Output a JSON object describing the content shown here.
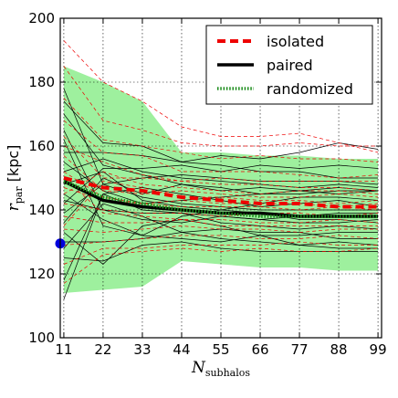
{
  "chart_data": {
    "type": "line",
    "xlabel": "N",
    "xlabel_sub": "subhalos",
    "ylabel": "r",
    "ylabel_sub": "par",
    "ylabel_unit": "[kpc]",
    "xlim": [
      10,
      100
    ],
    "ylim": [
      100,
      200
    ],
    "x_ticks": [
      11,
      22,
      33,
      44,
      55,
      66,
      77,
      88,
      99
    ],
    "y_ticks": [
      100,
      120,
      140,
      160,
      180,
      200
    ],
    "x": [
      11,
      22,
      33,
      44,
      55,
      66,
      77,
      88,
      99
    ],
    "grid": true,
    "legend_position": "top-right",
    "band": {
      "upper": [
        185,
        180,
        174,
        158,
        158,
        157,
        157,
        156,
        156
      ],
      "lower": [
        114,
        115,
        116,
        124,
        123,
        122,
        122,
        121,
        121
      ],
      "color": "#9ef09e"
    },
    "series": [
      {
        "name": "isolated",
        "style": "dashed",
        "color": "#ee0000",
        "values": [
          150,
          147,
          146,
          144,
          143,
          142,
          142,
          141,
          141
        ]
      },
      {
        "name": "paired",
        "style": "solid",
        "color": "#000000",
        "values": [
          149,
          143,
          141,
          140,
          139,
          139,
          138,
          138,
          138
        ]
      },
      {
        "name": "randomized",
        "style": "dotted",
        "color": "#1a8c1a",
        "values": [
          149,
          144,
          142,
          140,
          139,
          138,
          138,
          138,
          138
        ]
      }
    ],
    "thin_lines_black": [
      [
        112,
        145,
        140,
        139,
        136,
        135,
        134,
        135,
        134
      ],
      [
        118,
        145,
        147,
        145,
        143,
        141,
        142,
        143,
        141
      ],
      [
        125,
        124,
        129,
        130,
        128,
        127,
        127,
        127,
        127
      ],
      [
        128,
        142,
        138,
        133,
        134,
        133,
        133,
        131,
        131
      ],
      [
        133,
        123,
        135,
        137,
        135,
        132,
        129,
        128,
        128
      ],
      [
        136,
        150,
        145,
        148,
        146,
        147,
        146,
        147,
        146
      ],
      [
        139,
        148,
        150,
        151,
        150,
        149,
        149,
        149,
        148
      ],
      [
        142,
        153,
        153,
        154,
        152,
        154,
        153,
        154,
        153
      ],
      [
        145,
        137,
        132,
        138,
        140,
        139,
        137,
        137,
        136
      ],
      [
        148,
        152,
        143,
        141,
        140,
        142,
        144,
        144,
        143
      ],
      [
        152,
        156,
        152,
        150,
        149,
        148,
        147,
        148,
        147
      ],
      [
        155,
        146,
        142,
        143,
        144,
        145,
        146,
        145,
        146
      ],
      [
        158,
        158,
        157,
        155,
        154,
        152,
        152,
        150,
        150
      ],
      [
        162,
        135,
        132,
        131,
        130,
        132,
        132,
        133,
        133
      ],
      [
        165,
        140,
        137,
        136,
        138,
        137,
        136,
        136,
        137
      ],
      [
        170,
        154,
        151,
        148,
        147,
        145,
        145,
        146,
        146
      ],
      [
        174,
        161,
        160,
        155,
        157,
        156,
        158,
        161,
        159
      ],
      [
        178,
        148,
        144,
        142,
        141,
        140,
        140,
        140,
        140
      ],
      [
        130,
        130,
        131,
        133,
        131,
        130,
        129,
        130,
        129
      ],
      [
        143,
        140,
        139,
        139,
        138,
        137,
        138,
        139,
        139
      ]
    ],
    "thin_lines_red": [
      [
        193,
        180,
        174,
        166,
        163,
        163,
        164,
        161,
        158
      ],
      [
        185,
        168,
        165,
        161,
        160,
        160,
        161,
        160,
        160
      ],
      [
        175,
        162,
        160,
        158,
        156,
        157,
        156,
        156,
        155
      ],
      [
        168,
        158,
        157,
        152,
        152,
        152,
        151,
        150,
        151
      ],
      [
        163,
        150,
        150,
        149,
        148,
        148,
        147,
        147,
        146
      ],
      [
        157,
        146,
        145,
        146,
        145,
        144,
        144,
        145,
        144
      ],
      [
        152,
        144,
        142,
        143,
        142,
        142,
        142,
        141,
        142
      ],
      [
        147,
        143,
        142,
        141,
        141,
        141,
        140,
        141,
        140
      ],
      [
        142,
        140,
        139,
        139,
        138,
        139,
        139,
        138,
        139
      ],
      [
        138,
        136,
        136,
        137,
        137,
        136,
        136,
        137,
        136
      ],
      [
        134,
        133,
        134,
        135,
        134,
        134,
        133,
        134,
        134
      ],
      [
        129,
        130,
        131,
        132,
        132,
        131,
        131,
        132,
        131
      ],
      [
        123,
        128,
        128,
        129,
        129,
        129,
        130,
        129,
        129
      ],
      [
        117,
        126,
        127,
        128,
        127,
        128,
        127,
        127,
        128
      ],
      [
        160,
        155,
        151,
        149,
        150,
        149,
        149,
        149,
        149
      ],
      [
        150,
        139,
        138,
        137,
        135,
        135,
        135,
        135,
        135
      ],
      [
        145,
        152,
        148,
        147,
        146,
        145,
        146,
        146,
        145
      ],
      [
        135,
        149,
        147,
        144,
        144,
        143,
        143,
        142,
        143
      ]
    ],
    "marker": {
      "x": 10,
      "y": 129.5,
      "color": "#0000dd"
    }
  }
}
